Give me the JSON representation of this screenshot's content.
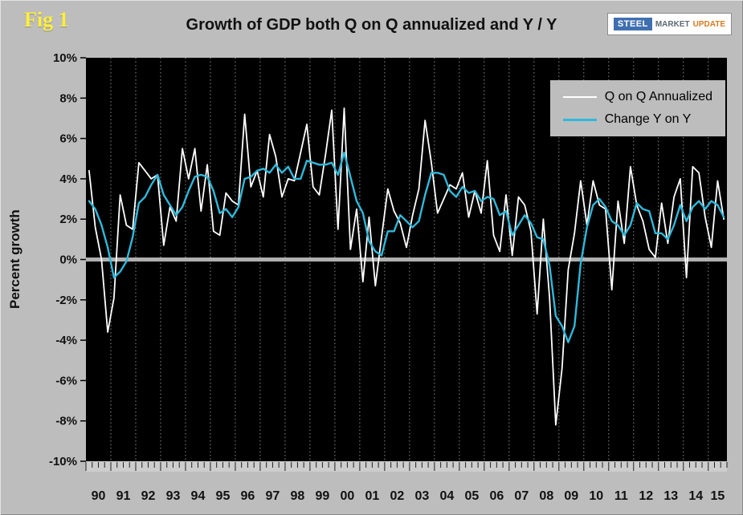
{
  "figure": {
    "fig_label": "Fig 1",
    "title": "Growth of GDP both Q on Q annualized and Y / Y"
  },
  "logo": {
    "steel": "STEEL",
    "market": "MARKET",
    "update": "UPDATE"
  },
  "y_axis": {
    "title": "Percent growth"
  },
  "legend": {
    "series1": "Q on Q Annualized",
    "series2": "Change Y on Y"
  },
  "colors": {
    "page_bg": "#bdbdbd",
    "plot_bg": "#000000",
    "qoq": "#ffffff",
    "yoy": "#2fb9da",
    "zero_line": "#b0b0b0",
    "gridline": "#8c8c8c",
    "fig_label": "#ffef3d"
  },
  "chart_data": {
    "type": "line",
    "title": "Growth of GDP both Q on Q annualized and Y / Y",
    "xlabel": "",
    "ylabel": "Percent growth",
    "ylim": [
      -10,
      10
    ],
    "y_tick_step": 2,
    "y_tick_labels": [
      "10%",
      "8%",
      "6%",
      "4%",
      "2%",
      "0%",
      "-2%",
      "-4%",
      "-6%",
      "-8%",
      "-10%"
    ],
    "x_year_labels": [
      "90",
      "91",
      "92",
      "93",
      "94",
      "95",
      "96",
      "97",
      "98",
      "99",
      "00",
      "01",
      "02",
      "03",
      "04",
      "05",
      "06",
      "07",
      "08",
      "09",
      "10",
      "11",
      "12",
      "13",
      "14",
      "15"
    ],
    "x_unit": "quarter",
    "x_start": "1990Q1",
    "x_end": "2015Q3",
    "grid": "vertical-dashed-yearly",
    "zero_line": true,
    "legend_position": "top-right",
    "series": [
      {
        "name": "Q on Q Annualized",
        "color": "#ffffff",
        "values": [
          4.4,
          1.6,
          0.0,
          -3.6,
          -1.9,
          3.2,
          1.7,
          1.5,
          4.8,
          4.4,
          4.0,
          4.2,
          0.7,
          2.6,
          1.9,
          5.5,
          4.0,
          5.5,
          2.4,
          4.7,
          1.4,
          1.2,
          3.3,
          2.9,
          2.7,
          7.2,
          3.6,
          4.4,
          3.1,
          6.2,
          5.1,
          3.1,
          4.0,
          3.9,
          5.3,
          6.7,
          3.6,
          3.2,
          5.2,
          7.4,
          1.5,
          7.5,
          0.5,
          2.5,
          -1.1,
          2.1,
          -1.3,
          1.1,
          3.5,
          2.4,
          1.8,
          0.6,
          2.2,
          3.5,
          6.9,
          4.8,
          2.3,
          3.0,
          3.7,
          3.5,
          4.3,
          2.1,
          3.4,
          2.3,
          4.9,
          1.2,
          0.4,
          3.2,
          0.2,
          3.1,
          2.7,
          1.4,
          -2.7,
          2.0,
          -1.9,
          -8.2,
          -5.4,
          -0.5,
          1.3,
          3.9,
          1.7,
          3.9,
          2.7,
          2.5,
          -1.5,
          2.9,
          0.8,
          4.6,
          2.7,
          1.9,
          0.5,
          0.1,
          2.8,
          0.8,
          3.1,
          4.0,
          -0.9,
          4.6,
          4.3,
          2.1,
          0.6,
          3.9,
          2.0
        ]
      },
      {
        "name": "Change Y on Y",
        "color": "#2fb9da",
        "values": [
          2.9,
          2.5,
          1.7,
          0.6,
          -0.9,
          -0.6,
          -0.1,
          1.1,
          2.8,
          3.1,
          3.7,
          4.2,
          3.2,
          2.7,
          2.2,
          2.6,
          3.4,
          4.1,
          4.2,
          4.1,
          3.4,
          2.3,
          2.5,
          2.1,
          2.6,
          4.0,
          4.1,
          4.4,
          4.5,
          4.3,
          4.7,
          4.3,
          4.6,
          4.0,
          4.0,
          4.9,
          4.8,
          4.7,
          4.7,
          4.8,
          4.2,
          5.3,
          4.1,
          2.9,
          2.3,
          0.9,
          0.4,
          0.2,
          1.4,
          1.4,
          2.2,
          1.9,
          1.6,
          1.9,
          3.2,
          4.3,
          4.3,
          4.2,
          3.4,
          3.1,
          3.6,
          3.3,
          3.4,
          2.9,
          3.1,
          3.0,
          2.2,
          2.4,
          1.2,
          1.7,
          2.2,
          1.8,
          1.1,
          1.0,
          -0.3,
          -2.8,
          -3.3,
          -4.1,
          -3.3,
          -0.2,
          1.6,
          2.7,
          3.0,
          2.6,
          1.9,
          1.7,
          1.2,
          1.7,
          2.8,
          2.5,
          2.4,
          1.3,
          1.3,
          1.0,
          1.7,
          2.7,
          1.9,
          2.6,
          2.9,
          2.5,
          2.9,
          2.7,
          2.1
        ]
      }
    ]
  }
}
